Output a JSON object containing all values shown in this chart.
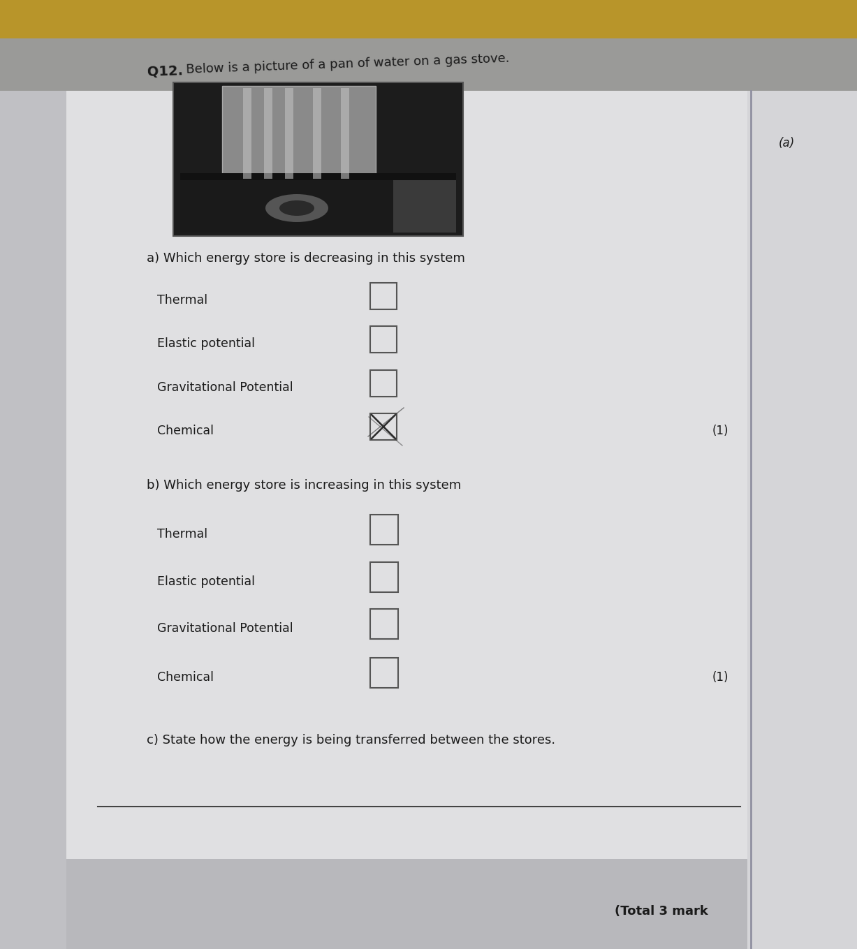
{
  "title_bold": "Q12.",
  "title_normal": " Below is a picture of a pan of water on a gas stove.",
  "section_a_label": "a) Which energy store is decreasing in this system",
  "section_b_label": "b) Which energy store is increasing in this system",
  "section_c_label": "c) State how the energy is being transferred between the stores.",
  "options_a": [
    "Thermal",
    "Elastic potential",
    "Gravitational Potential",
    "Chemical"
  ],
  "options_b": [
    "Thermal",
    "Elastic potential",
    "Gravitational Potential",
    "Chemical"
  ],
  "checked_a": [
    false,
    false,
    false,
    true
  ],
  "checked_b": [
    false,
    false,
    false,
    false
  ],
  "mark_a": "(1)",
  "mark_b": "(1)",
  "total_marks": "(Total 3 mark",
  "right_note": "(a)",
  "bg_top_color": "#c8b070",
  "bg_main_color": "#a8a8a8",
  "paper_main_color": "#e8e8ea",
  "paper_right_color": "#d0d0d5",
  "paper_left_strip": "#c8c8cc",
  "text_color": "#1a1a1a",
  "box_color": "#555555",
  "title_fontsize": 14,
  "body_fontsize": 13,
  "option_fontsize": 12.5,
  "mark_fontsize": 12
}
